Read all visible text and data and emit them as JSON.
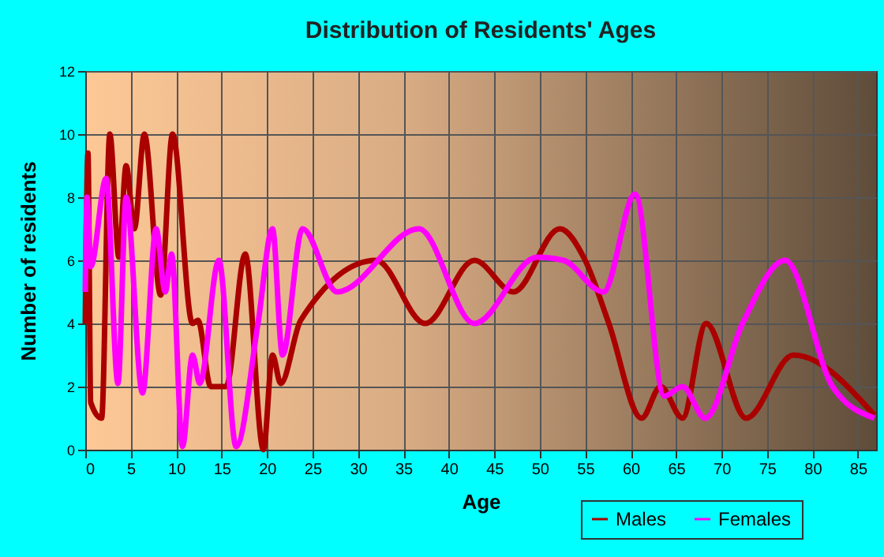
{
  "chart_data": {
    "type": "line",
    "title": "Distribution of Residents' Ages",
    "xlabel": "Age",
    "ylabel": "Number of residents",
    "xlim": [
      0,
      87
    ],
    "xticks": [
      0,
      5,
      10,
      15,
      20,
      25,
      30,
      35,
      40,
      45,
      50,
      55,
      60,
      65,
      70,
      75,
      80,
      85
    ],
    "ylim": [
      0,
      12
    ],
    "yticks": [
      0,
      2,
      4,
      6,
      8,
      10,
      12
    ],
    "grid": true,
    "legend": "bottom right",
    "line_style": "solid",
    "marker": "none",
    "series": [
      {
        "name": "Males",
        "color": "#aa0000",
        "x": [
          0,
          0.3,
          0.6,
          1.8,
          2.7,
          3.7,
          4.5,
          5.4,
          6.5,
          8.3,
          9.6,
          11.8,
          12.4,
          13.8,
          15.5,
          17.6,
          19.6,
          20.6,
          21.5,
          23.7,
          32,
          37.4,
          42.8,
          47.1,
          52.2,
          55,
          57.6,
          61.2,
          63.3,
          65.7,
          68.3,
          72.7,
          77.9,
          86.8
        ],
        "values": [
          4,
          9.4,
          1.5,
          1,
          10,
          6.1,
          9,
          7,
          10,
          4.9,
          10,
          4,
          4.1,
          2,
          2,
          6.2,
          0,
          3,
          2.1,
          4.1,
          6,
          4,
          6,
          5,
          7,
          6,
          4,
          1,
          2,
          1,
          4,
          1,
          3,
          1.1
        ]
      },
      {
        "name": "Females",
        "color": "#ff00ff",
        "x": [
          0,
          0.2,
          0.6,
          2.3,
          3.6,
          4.5,
          6.3,
          7.8,
          8.8,
          9.5,
          10.7,
          11.8,
          12.6,
          14.7,
          16.6,
          19,
          20.6,
          21.7,
          23.9,
          27.7,
          36.7,
          42.8,
          49.7,
          52.6,
          57,
          60.5,
          63.7,
          65.7,
          68.2,
          72.3,
          77,
          82.2,
          86.8
        ],
        "values": [
          5,
          8,
          5.8,
          8.6,
          2.1,
          8,
          1.8,
          7,
          5,
          6.2,
          0.1,
          3,
          2.1,
          6,
          0.1,
          4,
          7,
          3,
          7,
          5,
          7,
          4,
          6.1,
          6,
          5,
          8.1,
          1.7,
          2,
          1,
          4,
          6,
          2,
          1
        ]
      }
    ]
  }
}
